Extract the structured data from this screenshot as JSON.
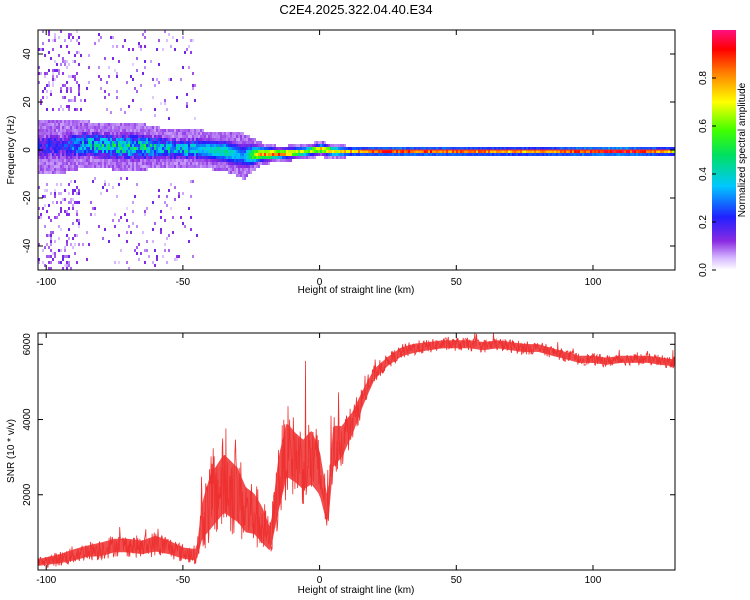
{
  "title": "C2E4.2025.322.04.40.E34",
  "chart_data": [
    {
      "type": "heatmap",
      "title": "C2E4.2025.322.04.40.E34",
      "xlabel": "Height of straight line (km)",
      "ylabel": "Frequency (Hz)",
      "xlim": [
        -103,
        130
      ],
      "ylim": [
        -50,
        50
      ],
      "x_ticks": [
        -100,
        -50,
        0,
        50,
        100
      ],
      "y_ticks": [
        -40,
        -20,
        0,
        20,
        40
      ],
      "colorbar": {
        "label": "Normalized spectral amplitude",
        "range": [
          0,
          1
        ],
        "ticks": [
          0.0,
          0.2,
          0.4,
          0.6,
          0.8
        ]
      },
      "ridge": {
        "description": "spectral peak near 0 Hz",
        "x": [
          -95,
          -85,
          -75,
          -65,
          -55,
          -45,
          -35,
          -28,
          -22,
          -15,
          -5,
          0,
          5,
          10,
          20,
          40,
          60,
          80,
          100,
          110,
          130
        ],
        "center_hz": [
          2,
          3,
          2,
          2,
          1,
          1,
          0,
          -2,
          -1,
          -1,
          0,
          1,
          0,
          0,
          0,
          0,
          0,
          0,
          0,
          0,
          0
        ],
        "half_width_hz": [
          7,
          6,
          6,
          6,
          5,
          5,
          5,
          6,
          3,
          2,
          2,
          2,
          2,
          1.5,
          1.5,
          1.5,
          1.5,
          1.5,
          1.5,
          1.5,
          1.5
        ],
        "amplitude": [
          0.2,
          0.35,
          0.4,
          0.4,
          0.35,
          0.35,
          0.45,
          0.3,
          0.8,
          0.9,
          0.6,
          0.8,
          0.7,
          0.75,
          0.85,
          0.85,
          0.8,
          0.75,
          0.9,
          0.95,
          0.7
        ]
      },
      "noise_region_x": [
        -103,
        -45
      ]
    },
    {
      "type": "line",
      "xlabel": "Height of straight line (km)",
      "ylabel": "SNR (10 * v/v)",
      "xlim": [
        -103,
        130
      ],
      "ylim": [
        0,
        6300
      ],
      "x_ticks": [
        -100,
        -50,
        0,
        50,
        100
      ],
      "y_ticks": [
        2000,
        4000,
        6000
      ],
      "series": [
        {
          "name": "SNR",
          "color": "#ee3030",
          "x": [
            -103,
            -95,
            -90,
            -85,
            -80,
            -75,
            -70,
            -65,
            -60,
            -55,
            -50,
            -45,
            -43,
            -40,
            -35,
            -30,
            -27,
            -24,
            -21,
            -18,
            -15,
            -12,
            -9,
            -6,
            -3,
            0,
            3,
            5,
            8,
            12,
            16,
            20,
            25,
            30,
            35,
            40,
            45,
            50,
            55,
            60,
            65,
            70,
            75,
            80,
            85,
            90,
            95,
            100,
            105,
            110,
            115,
            120,
            125,
            130
          ],
          "y": [
            200,
            300,
            400,
            500,
            550,
            650,
            650,
            600,
            700,
            600,
            450,
            400,
            1300,
            1800,
            2300,
            2000,
            1600,
            1500,
            1200,
            800,
            2300,
            3200,
            3000,
            2800,
            3000,
            2600,
            1500,
            3300,
            3400,
            3900,
            4600,
            5200,
            5550,
            5800,
            5900,
            5950,
            6000,
            6000,
            6000,
            5950,
            6000,
            5950,
            5900,
            5900,
            5800,
            5700,
            5600,
            5600,
            5550,
            5600,
            5600,
            5600,
            5550,
            5500
          ],
          "noise_amplitude": [
            150,
            200,
            250,
            250,
            300,
            300,
            300,
            300,
            350,
            300,
            250,
            250,
            800,
            1200,
            1300,
            1200,
            1000,
            900,
            800,
            500,
            1200,
            1200,
            1100,
            1100,
            1200,
            1000,
            600,
            900,
            700,
            500,
            350,
            250,
            200,
            200,
            200,
            180,
            180,
            180,
            180,
            180,
            180,
            180,
            180,
            170,
            170,
            160,
            160,
            160,
            160,
            160,
            160,
            160,
            160,
            160
          ]
        }
      ]
    }
  ]
}
